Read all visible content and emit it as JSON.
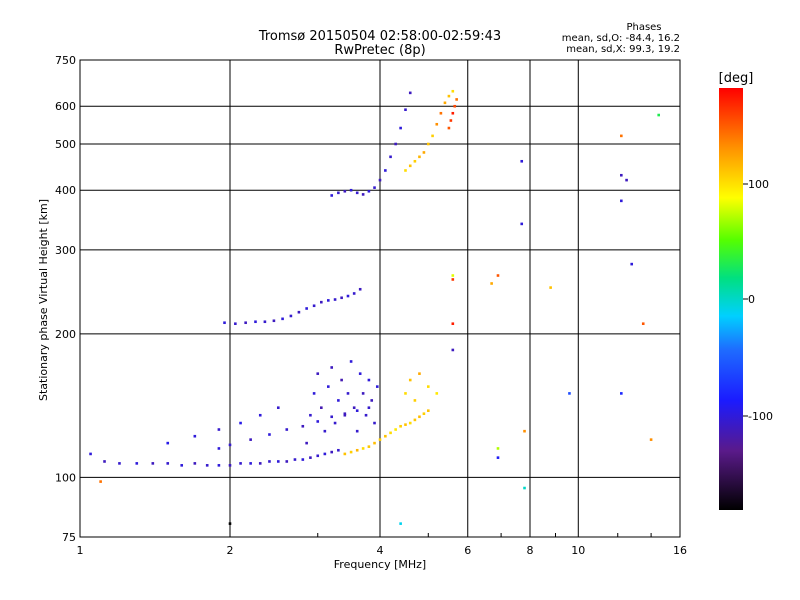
{
  "header": {
    "title_line1": "Tromsø 20150504 02:58:00-02:59:43",
    "title_line2": "RwPretec (8p)",
    "stats_title": "Phases",
    "stats_o": "mean, sd,O: -84.4, 16.2",
    "stats_x": "mean, sd,X: 99.3, 19.2"
  },
  "colorbar": {
    "label": "[deg]",
    "ticks": [
      "100",
      "0",
      "-100"
    ]
  },
  "chart_data": {
    "type": "scatter",
    "xlabel": "Frequency [MHz]",
    "ylabel": "Stationary phase Virtual Height [km]",
    "xscale": "log",
    "yscale": "log",
    "xlim": [
      1,
      16
    ],
    "ylim": [
      75,
      750
    ],
    "x_ticks": [
      1,
      2,
      4,
      6,
      8,
      10,
      16
    ],
    "x_tick_labels": [
      "1",
      "2",
      "4",
      "6",
      "8",
      "10",
      "16"
    ],
    "y_ticks": [
      75,
      100,
      200,
      300,
      400,
      500,
      600,
      750
    ],
    "y_tick_labels": [
      "75",
      "100",
      "200",
      "300",
      "400",
      "500",
      "600",
      "750"
    ],
    "grid": true,
    "colorbar_range": [
      -180,
      180
    ],
    "series": [
      {
        "x": [
          1.05,
          1.12,
          1.2,
          1.3,
          1.4,
          1.5,
          1.6,
          1.7,
          1.8,
          1.9,
          2.0,
          2.1,
          2.2,
          2.3,
          2.4,
          2.5,
          2.6,
          2.7,
          2.8,
          2.9,
          3.0,
          3.1,
          3.2,
          3.3
        ],
        "y": [
          112,
          108,
          107,
          107,
          107,
          107,
          106,
          107,
          106,
          106,
          106,
          107,
          107,
          107,
          108,
          108,
          108,
          109,
          109,
          110,
          111,
          112,
          113,
          114
        ],
        "phase": [
          -100,
          -110,
          -105,
          -100,
          -110,
          -105,
          -100,
          -110,
          -105,
          -100,
          -110,
          -105,
          -100,
          -110,
          -105,
          -100,
          -110,
          -105,
          -100,
          -110,
          -105,
          -100,
          -110,
          -105
        ]
      },
      {
        "x": [
          1.9,
          2.0,
          2.2,
          2.4,
          2.6,
          2.8,
          3.0,
          3.2,
          3.4,
          3.6,
          3.8
        ],
        "y": [
          115,
          117,
          120,
          123,
          126,
          128,
          131,
          134,
          136,
          138,
          140
        ],
        "phase": [
          -100,
          -105,
          -110,
          -100,
          -105,
          -110,
          -100,
          -105,
          -110,
          -100,
          -105
        ]
      },
      {
        "x": [
          1.5,
          1.7,
          1.9,
          2.1,
          2.3,
          2.5
        ],
        "y": [
          118,
          122,
          126,
          130,
          135,
          140
        ],
        "phase": [
          -95,
          -100,
          -105,
          -95,
          -100,
          -105
        ]
      },
      {
        "x": [
          2.85,
          2.9,
          2.95,
          3.0,
          3.05,
          3.1,
          3.15,
          3.2,
          3.25,
          3.3,
          3.35,
          3.4,
          3.45,
          3.5,
          3.55,
          3.6,
          3.65,
          3.7,
          3.75,
          3.8,
          3.85,
          3.9,
          3.95
        ],
        "y": [
          118,
          135,
          150,
          165,
          140,
          125,
          155,
          170,
          130,
          145,
          160,
          135,
          150,
          175,
          140,
          125,
          165,
          150,
          135,
          160,
          145,
          130,
          155
        ],
        "phase": [
          -110,
          -105,
          -100,
          -110,
          -115,
          -105,
          -100,
          -110,
          -105,
          -100,
          -115,
          -110,
          -105,
          -100,
          -110,
          -105,
          -100,
          -110,
          -105,
          -100,
          -110,
          -105,
          -100
        ]
      },
      {
        "x": [
          3.4,
          3.5,
          3.6,
          3.7,
          3.8,
          3.9,
          4.0,
          4.1,
          4.2,
          4.3,
          4.4,
          4.5,
          4.6,
          4.7,
          4.8,
          4.9,
          5.0
        ],
        "y": [
          112,
          113,
          114,
          115,
          116,
          118,
          120,
          122,
          124,
          126,
          128,
          129,
          130,
          132,
          134,
          136,
          138
        ],
        "phase": [
          110,
          105,
          115,
          100,
          108,
          112,
          105,
          110,
          100,
          95,
          105,
          110,
          100,
          108,
          112,
          105,
          110
        ]
      },
      {
        "x": [
          4.5,
          4.6,
          4.7,
          4.8,
          5.0,
          5.2
        ],
        "y": [
          150,
          160,
          145,
          165,
          155,
          150
        ],
        "phase": [
          100,
          110,
          105,
          120,
          100,
          95
        ]
      },
      {
        "x": [
          1.95,
          2.05,
          2.15,
          2.25,
          2.35,
          2.45,
          2.55,
          2.65,
          2.75,
          2.85,
          2.95,
          3.05,
          3.15,
          3.25,
          3.35,
          3.45,
          3.55,
          3.65
        ],
        "y": [
          211,
          210,
          211,
          212,
          212,
          213,
          215,
          218,
          222,
          226,
          229,
          233,
          235,
          236,
          238,
          240,
          243,
          248
        ],
        "phase": [
          -100,
          -105,
          -110,
          -100,
          -105,
          -110,
          -100,
          -105,
          -110,
          -100,
          -105,
          -110,
          -100,
          -105,
          -110,
          -100,
          -105,
          -110
        ]
      },
      {
        "x": [
          3.2,
          3.3,
          3.4,
          3.5,
          3.6,
          3.7,
          3.8,
          3.9,
          4.0,
          4.1,
          4.2,
          4.3,
          4.4,
          4.5,
          4.6
        ],
        "y": [
          390,
          395,
          398,
          400,
          395,
          392,
          398,
          405,
          420,
          440,
          470,
          500,
          540,
          590,
          640
        ],
        "phase": [
          -100,
          -105,
          -110,
          -100,
          -105,
          -110,
          -100,
          -105,
          -110,
          -100,
          -105,
          -110,
          -100,
          -105,
          -110
        ]
      },
      {
        "x": [
          4.5,
          4.6,
          4.7,
          4.8,
          4.9,
          5.0,
          5.1,
          5.2,
          5.3,
          5.4,
          5.5,
          5.6
        ],
        "y": [
          440,
          450,
          460,
          470,
          480,
          500,
          520,
          550,
          580,
          610,
          630,
          645
        ],
        "phase": [
          100,
          110,
          105,
          115,
          120,
          110,
          105,
          130,
          140,
          120,
          110,
          100
        ]
      },
      {
        "x": [
          5.5,
          5.55,
          5.6,
          5.65,
          5.7
        ],
        "y": [
          540,
          560,
          580,
          600,
          620
        ],
        "phase": [
          150,
          160,
          170,
          155,
          140
        ]
      },
      {
        "x": [
          6.9,
          7.8,
          8.8,
          9.6,
          12.2,
          12.8,
          14.5,
          12.2,
          12.2,
          12.2,
          5.6,
          5.6,
          5.6,
          5.6,
          6.7,
          6.9,
          7.8,
          7.7,
          7.7,
          4.4,
          1.1,
          2.0,
          6.9,
          13.5,
          14.0,
          12.5
        ],
        "y": [
          265,
          95,
          250,
          150,
          150,
          280,
          575,
          520,
          430,
          380,
          265,
          260,
          210,
          185,
          255,
          110,
          125,
          340,
          460,
          80,
          98,
          80,
          115,
          210,
          120,
          420
        ],
        "phase": [
          150,
          0,
          110,
          -60,
          -80,
          -100,
          30,
          140,
          -110,
          -100,
          80,
          160,
          170,
          -110,
          120,
          -90,
          130,
          -100,
          -100,
          -10,
          140,
          -180,
          70,
          150,
          130,
          -110
        ]
      }
    ]
  }
}
